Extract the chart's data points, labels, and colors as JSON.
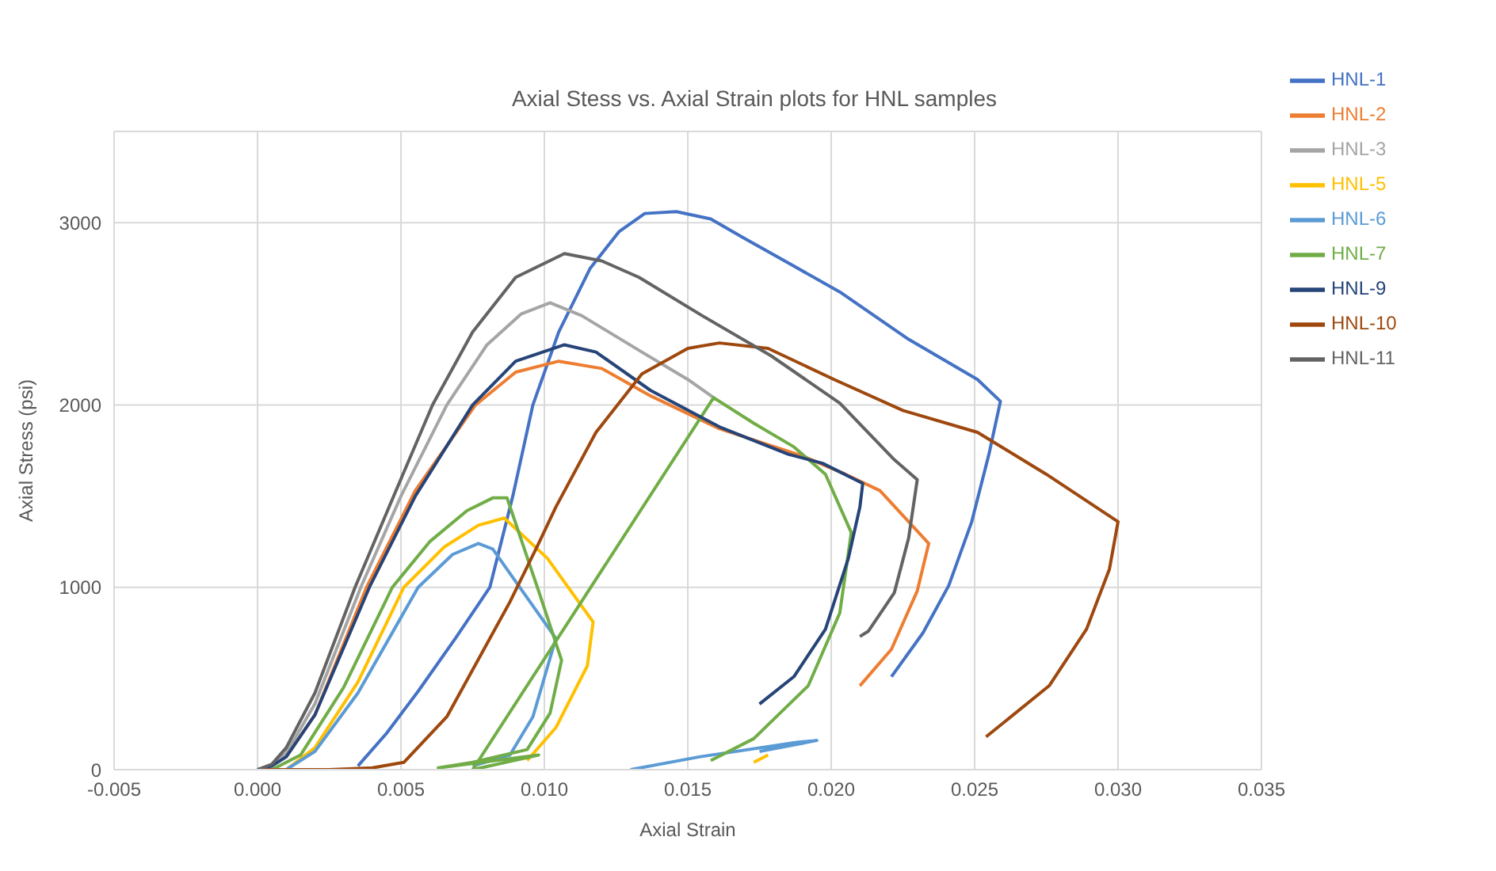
{
  "chart_data": {
    "type": "line",
    "title": "Axial Stess vs. Axial Strain plots for HNL samples",
    "xlabel": "Axial Strain",
    "ylabel": "Axial Stress (psi)",
    "xlim": [
      -0.005,
      0.035
    ],
    "xticks": [
      {
        "value": -0.005,
        "label": "-0.005"
      },
      {
        "value": 0,
        "label": "0.000"
      },
      {
        "value": 0.005,
        "label": "0.005"
      },
      {
        "value": 0.01,
        "label": "0.010"
      },
      {
        "value": 0.015,
        "label": "0.015"
      },
      {
        "value": 0.02,
        "label": "0.020"
      },
      {
        "value": 0.025,
        "label": "0.025"
      },
      {
        "value": 0.03,
        "label": "0.030"
      },
      {
        "value": 0.035,
        "label": "0.035"
      }
    ],
    "ylim": [
      0,
      3500
    ],
    "yticks": [
      0,
      1000,
      2000,
      3000
    ],
    "grid": true,
    "legend": "top right",
    "marker": "none",
    "line_style": "solid",
    "series": [
      {
        "name": "HNL-1",
        "color": "#4472c4",
        "x": [
          0.0035,
          0.0045,
          0.0056,
          0.0069,
          0.0081,
          0.0089,
          0.0096,
          0.0105,
          0.0116,
          0.0126,
          0.0135,
          0.0146,
          0.0158,
          0.0169,
          0.0186,
          0.0203,
          0.0227,
          0.0251,
          0.0259,
          0.0255,
          0.0249,
          0.0241,
          0.0232,
          0.0221
        ],
        "values": [
          20,
          200,
          430,
          720,
          1000,
          1500,
          2000,
          2400,
          2750,
          2950,
          3050,
          3060,
          3020,
          2920,
          2770,
          2620,
          2360,
          2140,
          2020,
          1730,
          1360,
          1010,
          750,
          510
        ]
      },
      {
        "name": "HNL-2",
        "color": "#ed7d31",
        "x": [
          null,
          null,
          0.001,
          0.002,
          0.0038,
          0.0055,
          0.0076,
          0.009,
          0.0105,
          0.012,
          0.0137,
          0.0161,
          0.019,
          0.0205,
          0.0217,
          0.0234,
          0.023,
          0.0221,
          0.021
        ],
        "values": [
          null,
          null,
          70,
          300,
          1000,
          1530,
          2000,
          2180,
          2240,
          2200,
          2050,
          1870,
          1720,
          1620,
          1530,
          1240,
          980,
          660,
          460
        ]
      },
      {
        "name": "HNL-3",
        "color": "#a5a5a5",
        "x": [
          0,
          0.0005,
          0.001,
          0.002,
          0.0036,
          0.005,
          0.0066,
          0.008,
          0.0092,
          0.0102,
          0.0113,
          0.0134,
          0.015,
          0.0159
        ],
        "values": [
          0,
          20,
          90,
          360,
          1000,
          1500,
          2000,
          2330,
          2500,
          2560,
          2490,
          2290,
          2140,
          2040
        ]
      },
      {
        "name": "HNL-5",
        "color": "#ffc000",
        "x": [
          0.001,
          0.002,
          0.0035,
          0.0051,
          0.0065,
          0.0077,
          0.0086,
          0.0101,
          0.0117,
          0.0115,
          0.0104,
          0.0094,
          0.013,
          0.0173,
          0.0178
        ],
        "values": [
          0,
          120,
          480,
          1000,
          1220,
          1340,
          1380,
          1160,
          810,
          570,
          230,
          50,
          null,
          40,
          80
        ]
      },
      {
        "name": "HNL-6",
        "color": "#5b9bd5",
        "x": [
          0.001,
          0.002,
          0.0035,
          0.0056,
          0.0068,
          0.0077,
          0.0082,
          0.0104,
          0.0096,
          0.0088,
          0.0075,
          0.012,
          0.013,
          0.0154,
          0.0188,
          0.0195,
          0.0175
        ],
        "values": [
          0,
          100,
          420,
          1000,
          1180,
          1240,
          1210,
          720,
          290,
          80,
          20,
          null,
          0,
          70,
          150,
          160,
          100
        ]
      },
      {
        "name": "HNL-7",
        "color": "#70ad47",
        "x": [
          0.0005,
          0.0015,
          0.003,
          0.0047,
          0.006,
          0.0073,
          0.0082,
          0.0087,
          0.0098,
          0.0106,
          0.0102,
          0.0094,
          0.0075,
          0.0063,
          0.0098,
          0.0075,
          0.0159,
          0.0173,
          0.0187,
          0.0198,
          0.0207,
          0.0203,
          0.0192,
          0.0173,
          0.0158
        ],
        "values": [
          0,
          80,
          450,
          1000,
          1250,
          1420,
          1490,
          1490,
          980,
          600,
          310,
          110,
          40,
          10,
          80,
          0,
          2040,
          1900,
          1770,
          1620,
          1300,
          860,
          460,
          170,
          50
        ]
      },
      {
        "name": "HNL-9",
        "color": "#264478",
        "x": [
          0,
          0.0005,
          0.001,
          0.002,
          0.0039,
          0.0055,
          0.0075,
          0.009,
          0.0107,
          0.0118,
          0.0137,
          0.0161,
          0.0185,
          0.0197,
          0.0211,
          0.021,
          0.0206,
          0.0198,
          0.0187,
          0.0175
        ],
        "values": [
          0,
          20,
          70,
          300,
          1000,
          1500,
          2000,
          2240,
          2330,
          2290,
          2080,
          1880,
          1730,
          1680,
          1570,
          1440,
          1160,
          770,
          510,
          360
        ]
      },
      {
        "name": "HNL-10",
        "color": "#9e480e",
        "x": [
          0,
          0.0025,
          0.004,
          0.0051,
          0.0066,
          0.0088,
          0.0098,
          0.0104,
          0.0118,
          0.0134,
          0.015,
          0.0161,
          0.0178,
          0.0201,
          0.0225,
          0.0251,
          0.0275,
          0.03,
          0.0297,
          0.0289,
          0.0276,
          0.0254
        ],
        "values": [
          0,
          0,
          10,
          40,
          290,
          920,
          1240,
          1440,
          1850,
          2170,
          2310,
          2340,
          2310,
          2140,
          1970,
          1850,
          1620,
          1360,
          1100,
          770,
          460,
          180
        ]
      },
      {
        "name": "HNL-11",
        "color": "#636363",
        "x": [
          0,
          0.0005,
          0.001,
          0.002,
          0.0034,
          0.0048,
          0.0061,
          0.0075,
          0.009,
          0.0107,
          0.012,
          0.0133,
          0.0155,
          0.0179,
          0.0203,
          0.0222,
          0.023,
          0.0227,
          0.0222,
          0.0213,
          0.021
        ],
        "values": [
          0,
          30,
          120,
          420,
          1000,
          1520,
          2000,
          2400,
          2700,
          2830,
          2790,
          2700,
          2490,
          2270,
          2010,
          1700,
          1590,
          1270,
          970,
          760,
          730
        ]
      }
    ]
  }
}
